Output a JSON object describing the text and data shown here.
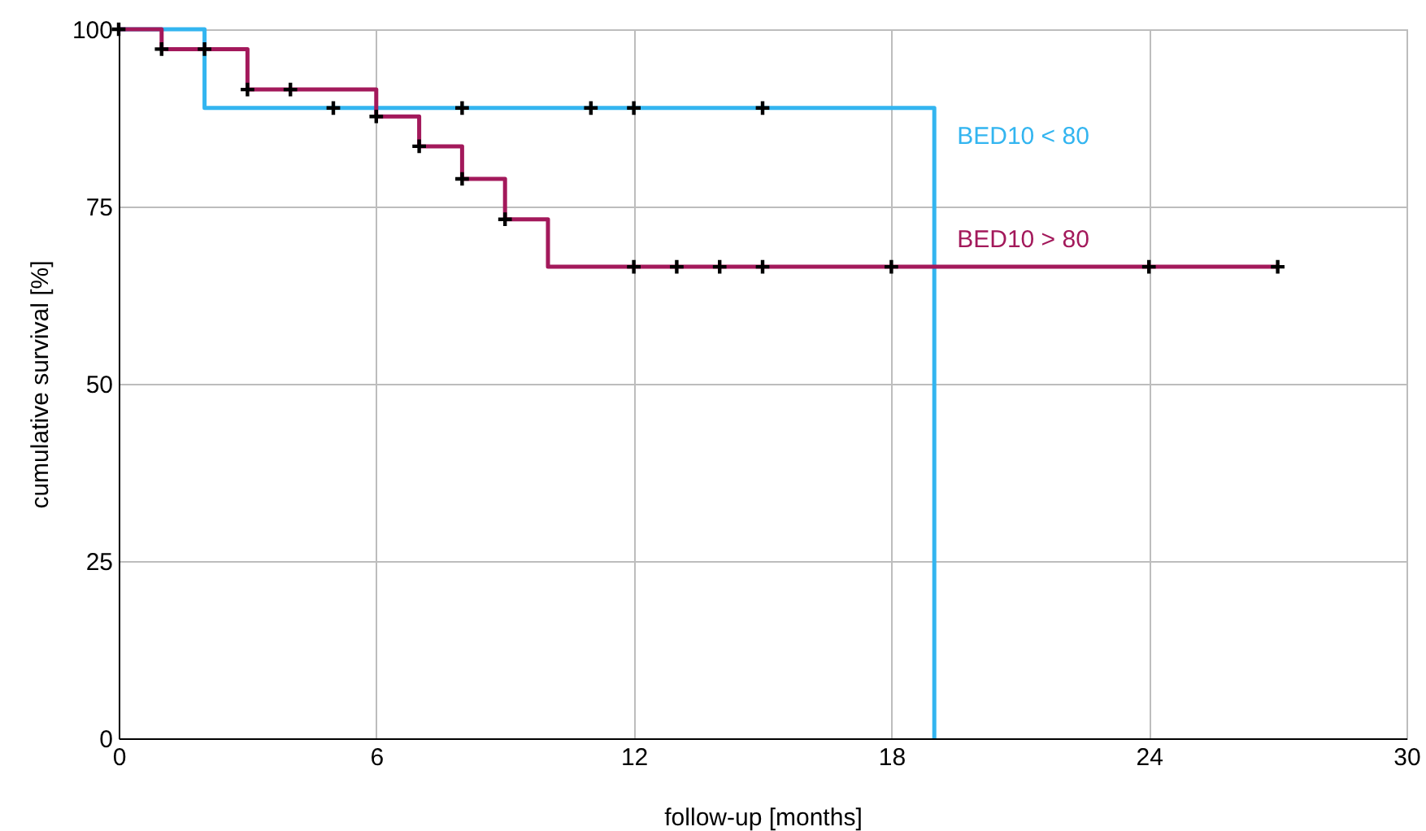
{
  "chart_data": {
    "type": "step",
    "xlabel": "follow-up [months]",
    "ylabel": "cumulative survival [%]",
    "xlim": [
      0,
      30
    ],
    "xticks": [
      0,
      6,
      12,
      18,
      24,
      30
    ],
    "ylim": [
      0,
      100
    ],
    "yticks": [
      0,
      25,
      50,
      75,
      100
    ],
    "grid": true,
    "line_style": "solid",
    "series": [
      {
        "name": "BED10 < 80",
        "color": "#33b5f0",
        "x": [
          0,
          2,
          19,
          19
        ],
        "values": [
          100,
          88.9,
          88.9,
          0
        ]
      },
      {
        "name": "BED10 > 80",
        "color": "#a3195b",
        "x": [
          0,
          1,
          3,
          6,
          7,
          8,
          9,
          10,
          27
        ],
        "values": [
          100,
          97.2,
          91.5,
          87.7,
          83.5,
          78.9,
          73.2,
          66.5,
          66.5
        ]
      },
      {
        "type": "scatter",
        "marker": "cross",
        "color": "#000000",
        "x": [
          0,
          1,
          2,
          3,
          4,
          5,
          6,
          7,
          8,
          8,
          9,
          11,
          12,
          12,
          13,
          14,
          15,
          15,
          18,
          24,
          27
        ],
        "values": [
          100,
          97.2,
          97.2,
          91.5,
          91.5,
          88.9,
          87.7,
          83.5,
          88.9,
          78.9,
          73.2,
          88.9,
          88.9,
          66.5,
          66.5,
          66.5,
          66.5,
          88.9,
          66.5,
          66.5,
          66.5
        ]
      }
    ]
  }
}
